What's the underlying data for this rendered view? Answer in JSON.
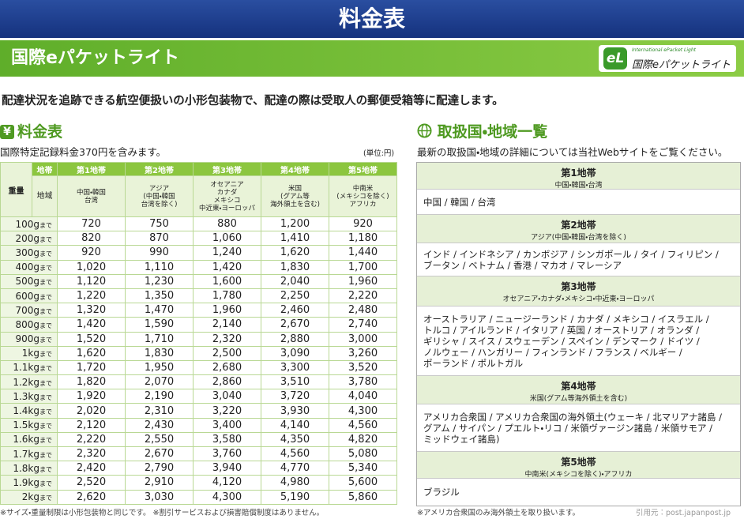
{
  "header": {
    "title": "料金表"
  },
  "banner": {
    "title": "国際eパケットライト",
    "logo": {
      "mark": "eL",
      "english": "International ePacket Light",
      "japanese": "国際eパケットライト"
    }
  },
  "description": "配達状況を追跡できる航空便扱いの小形包装物で、配達の際は受取人の郵便受箱等に配達します。",
  "rates": {
    "icon": "¥",
    "title": "料金表",
    "note": "国際特定記録料金370円を含みます。",
    "unit": "(単位:円)",
    "table": {
      "zone_header": "地帯",
      "weight_header": "重量",
      "region_header": "地域",
      "weight_suffix": "まで",
      "zones": [
        {
          "name": "第1地帯",
          "regions": "中国・韓国\n台湾"
        },
        {
          "name": "第2地帯",
          "regions": "アジア\n(中国・韓国\n台湾を除く)"
        },
        {
          "name": "第3地帯",
          "regions": "オセアニア\nカナダ\nメキシコ\n中近東・ヨーロッパ"
        },
        {
          "name": "第4地帯",
          "regions": "米国\n(グアム等\n海外領土を含む)"
        },
        {
          "name": "第5地帯",
          "regions": "中南米\n(メキシコを除く)\nアフリカ"
        }
      ],
      "rows": [
        [
          "100g",
          "720",
          "750",
          "880",
          "1,200",
          "920"
        ],
        [
          "200g",
          "820",
          "870",
          "1,060",
          "1,410",
          "1,180"
        ],
        [
          "300g",
          "920",
          "990",
          "1,240",
          "1,620",
          "1,440"
        ],
        [
          "400g",
          "1,020",
          "1,110",
          "1,420",
          "1,830",
          "1,700"
        ],
        [
          "500g",
          "1,120",
          "1,230",
          "1,600",
          "2,040",
          "1,960"
        ],
        [
          "600g",
          "1,220",
          "1,350",
          "1,780",
          "2,250",
          "2,220"
        ],
        [
          "700g",
          "1,320",
          "1,470",
          "1,960",
          "2,460",
          "2,480"
        ],
        [
          "800g",
          "1,420",
          "1,590",
          "2,140",
          "2,670",
          "2,740"
        ],
        [
          "900g",
          "1,520",
          "1,710",
          "2,320",
          "2,880",
          "3,000"
        ],
        [
          "1kg",
          "1,620",
          "1,830",
          "2,500",
          "3,090",
          "3,260"
        ],
        [
          "1.1kg",
          "1,720",
          "1,950",
          "2,680",
          "3,300",
          "3,520"
        ],
        [
          "1.2kg",
          "1,820",
          "2,070",
          "2,860",
          "3,510",
          "3,780"
        ],
        [
          "1.3kg",
          "1,920",
          "2,190",
          "3,040",
          "3,720",
          "4,040"
        ],
        [
          "1.4kg",
          "2,020",
          "2,310",
          "3,220",
          "3,930",
          "4,300"
        ],
        [
          "1.5kg",
          "2,120",
          "2,430",
          "3,400",
          "4,140",
          "4,560"
        ],
        [
          "1.6kg",
          "2,220",
          "2,550",
          "3,580",
          "4,350",
          "4,820"
        ],
        [
          "1.7kg",
          "2,320",
          "2,670",
          "3,760",
          "4,560",
          "5,080"
        ],
        [
          "1.8kg",
          "2,420",
          "2,790",
          "3,940",
          "4,770",
          "5,340"
        ],
        [
          "1.9kg",
          "2,520",
          "2,910",
          "4,120",
          "4,980",
          "5,600"
        ],
        [
          "2kg",
          "2,620",
          "3,030",
          "4,300",
          "5,190",
          "5,860"
        ]
      ]
    },
    "footnote": "※サイズ・重量制限は小形包装物と同じです。 ※割引サービスおよび損害賠償制度はありません。"
  },
  "coverage": {
    "title": "取扱国・地域一覧",
    "note": "最新の取扱国・地域の詳細については当社Webサイトをご覧ください。",
    "zones": [
      {
        "name": "第1地帯",
        "summary": "中国・韓国・台湾",
        "countries": "中国 / 韓国 / 台湾"
      },
      {
        "name": "第2地帯",
        "summary": "アジア(中国・韓国・台湾を除く)",
        "countries": "インド / インドネシア / カンボジア / シンガポール / タイ / フィリピン /\nブータン / ベトナム / 香港 / マカオ / マレーシア"
      },
      {
        "name": "第3地帯",
        "summary": "オセアニア・カナダ・メキシコ・中近東・ヨーロッパ",
        "countries": "オーストラリア / ニュージーランド / カナダ / メキシコ / イスラエル /\nトルコ / アイルランド / イタリア / 英国 / オーストリア / オランダ /\nギリシャ / スイス / スウェーデン / スペイン / デンマーク / ドイツ /\nノルウェー / ハンガリー / フィンランド / フランス / ベルギー /\nポーランド / ポルトガル"
      },
      {
        "name": "第4地帯",
        "summary": "米国(グアム等海外領土を含む)",
        "countries": "アメリカ合衆国 / アメリカ合衆国の海外領土(ウェーキ / 北マリアナ諸島 /\nグアム / サイパン / プエルト・リコ / 米領ヴァージン諸島 / 米領サモア /\nミッドウェイ諸島)"
      },
      {
        "name": "第5地帯",
        "summary": "中南米(メキシコを除く)・アフリカ",
        "countries": "ブラジル"
      }
    ],
    "footnote": "※アメリカ合衆国のみ海外領土を取り扱います。"
  },
  "source": "引用元：post.japanpost.jp"
}
